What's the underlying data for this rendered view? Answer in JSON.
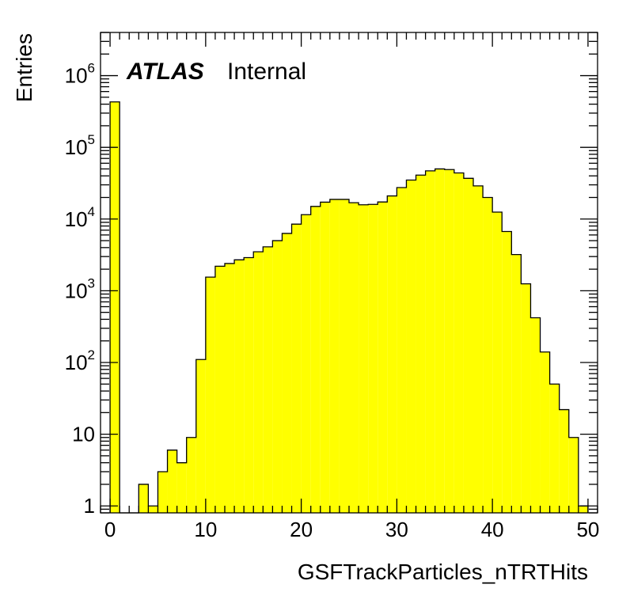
{
  "chart_data": {
    "type": "bar",
    "histogram": true,
    "title": "",
    "xlabel": "GSFTrackParticles_nTRTHits",
    "ylabel": "Entries",
    "log_y": true,
    "xlim": [
      -1,
      51
    ],
    "ylim": [
      0.8,
      4000000
    ],
    "x_ticks": [
      {
        "value": 0,
        "label": "0"
      },
      {
        "value": 10,
        "label": "10"
      },
      {
        "value": 20,
        "label": "20"
      },
      {
        "value": 30,
        "label": "30"
      },
      {
        "value": 40,
        "label": "40"
      },
      {
        "value": 50,
        "label": "50"
      }
    ],
    "y_ticks": [
      {
        "value": 1,
        "base": "1",
        "exp": ""
      },
      {
        "value": 10,
        "base": "10",
        "exp": ""
      },
      {
        "value": 100,
        "base": "10",
        "exp": "2"
      },
      {
        "value": 1000,
        "base": "10",
        "exp": "3"
      },
      {
        "value": 10000,
        "base": "10",
        "exp": "4"
      },
      {
        "value": 100000,
        "base": "10",
        "exp": "5"
      },
      {
        "value": 1000000,
        "base": "10",
        "exp": "6"
      }
    ],
    "fill_color": "#ffff00",
    "line_color": "#000000",
    "grid": false,
    "bin_edges": [
      0,
      1,
      2,
      3,
      4,
      5,
      6,
      7,
      8,
      9,
      10,
      11,
      12,
      13,
      14,
      15,
      16,
      17,
      18,
      19,
      20,
      21,
      22,
      23,
      24,
      25,
      26,
      27,
      28,
      29,
      30,
      31,
      32,
      33,
      34,
      35,
      36,
      37,
      38,
      39,
      40,
      41,
      42,
      43,
      44,
      45,
      46,
      47,
      48,
      49,
      50
    ],
    "values": [
      430000,
      0,
      0,
      2,
      1,
      3,
      6,
      4,
      9,
      110,
      1550,
      2200,
      2400,
      2700,
      2900,
      3500,
      4100,
      5000,
      6300,
      8500,
      11500,
      15000,
      17200,
      18800,
      18800,
      16900,
      15800,
      16000,
      17300,
      21000,
      27500,
      35000,
      41000,
      47000,
      50000,
      49000,
      44000,
      37000,
      29000,
      20000,
      12500,
      6700,
      3200,
      1250,
      420,
      140,
      50,
      22,
      9,
      1
    ]
  },
  "labels": {
    "atlas": "ATLAS",
    "internal": "Internal"
  }
}
